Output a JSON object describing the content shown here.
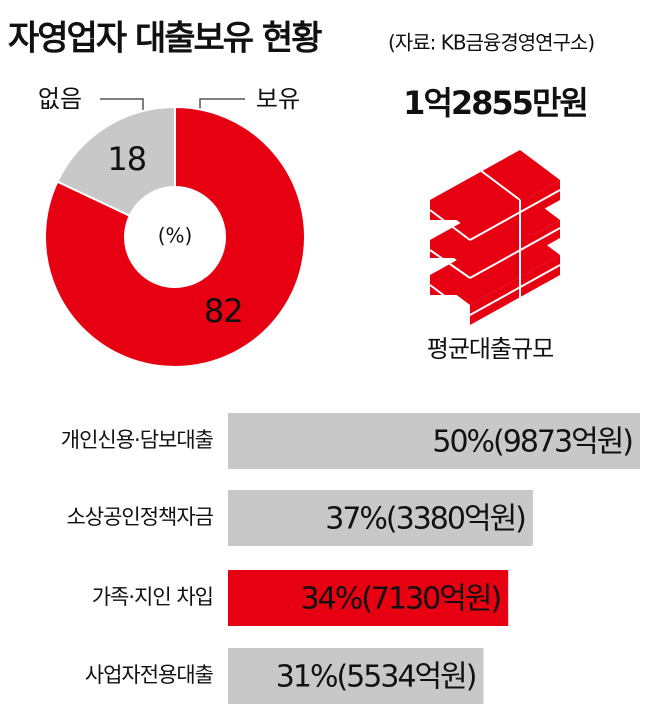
{
  "header": {
    "title": "자영업자 대출보유 현황",
    "source": "(자료: KB금융경영연구소)"
  },
  "highlight": {
    "amount": "1억2855만원",
    "caption": "평균대출규모"
  },
  "chart_data": [
    {
      "type": "pie",
      "categories": [
        "없음",
        "보유"
      ],
      "values": [
        18,
        82
      ],
      "colors": [
        "#c8c8c8",
        "#e60012"
      ],
      "center_label": "(%)"
    },
    {
      "type": "bar",
      "orientation": "horizontal",
      "categories": [
        "개인신용·담보대출",
        "소상공인정책자금",
        "가족·지인 차입",
        "사업자전용대출"
      ],
      "values": [
        50,
        37,
        34,
        31
      ],
      "value_labels": [
        "50%(9873억원)",
        "37%(3380억원)",
        "34%(7130억원)",
        "31%(5534억원)"
      ],
      "colors": [
        "#c8c8c8",
        "#c8c8c8",
        "#e60012",
        "#c8c8c8"
      ],
      "xlim": [
        0,
        50
      ]
    }
  ]
}
